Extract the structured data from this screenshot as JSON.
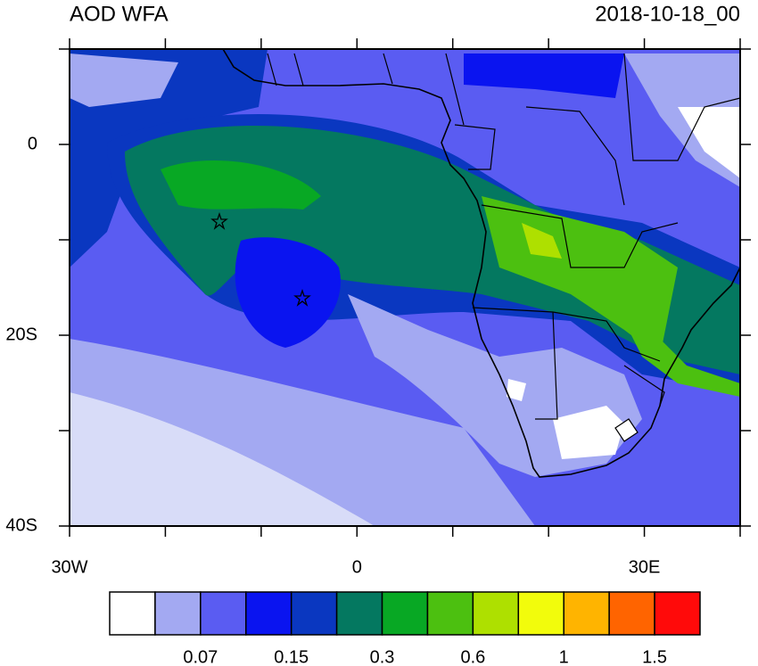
{
  "header": {
    "title": "AOD WFA",
    "date": "2018-10-18_00"
  },
  "map": {
    "xlim": [
      -30,
      40
    ],
    "ylim": [
      -40,
      10
    ],
    "xticks": [
      {
        "value": -30,
        "label": "30W"
      },
      0,
      {
        "value": 30,
        "label": "30E"
      }
    ],
    "x_minor_ticks": [
      -20,
      -10,
      10,
      20,
      40
    ],
    "yticks": [
      0,
      {
        "value": -20,
        "label": "20S"
      },
      {
        "value": -40,
        "label": "40S"
      }
    ],
    "y_minor_ticks": [
      10,
      -10,
      -30
    ]
  },
  "colorbar": {
    "colors": [
      "#ffffff",
      "#a3a9f2",
      "#5a5cf2",
      "#0a14f0",
      "#0a37c0",
      "#047860",
      "#08a824",
      "#4cc010",
      "#aee000",
      "#f2fc0c",
      "#ffb400",
      "#ff6400",
      "#ff0a0a"
    ],
    "labels": [
      null,
      0.07,
      null,
      0.15,
      null,
      0.3,
      null,
      0.6,
      null,
      1,
      null,
      1.5
    ]
  }
}
